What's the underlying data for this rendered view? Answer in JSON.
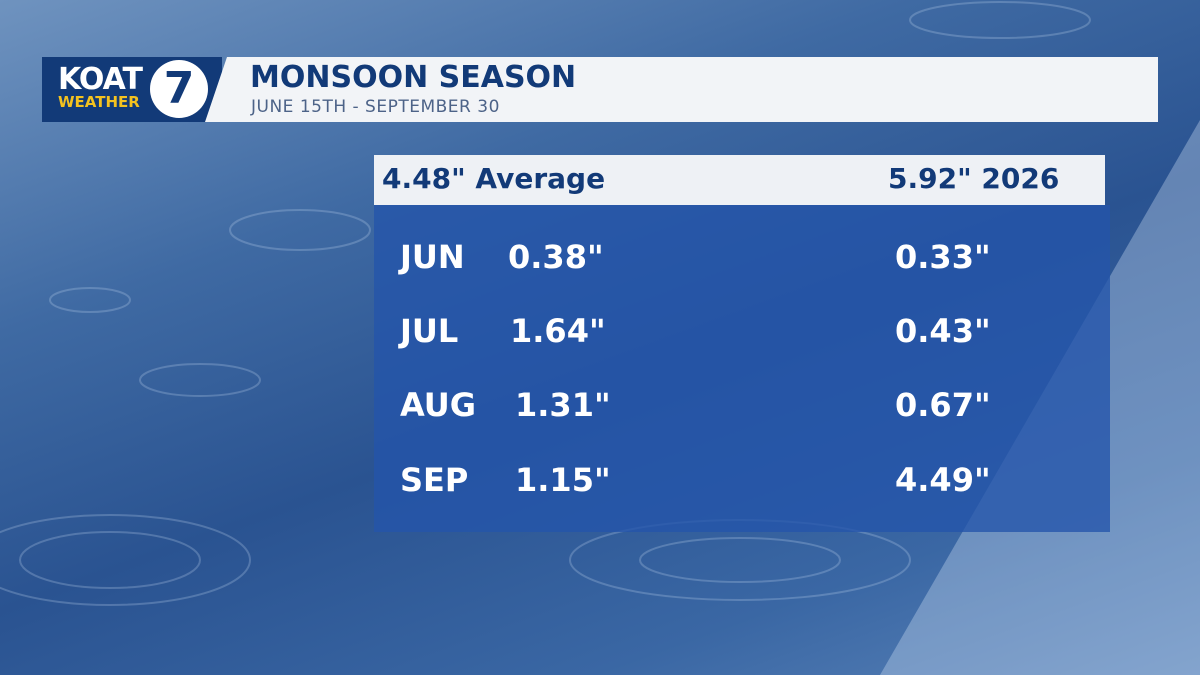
{
  "header": {
    "logo": {
      "name": "KOAT",
      "tag": "WEATHER",
      "channel": "7"
    },
    "title": "MONSOON SEASON",
    "subtitle": "JUNE 15TH - SEPTEMBER 30"
  },
  "table": {
    "header": [
      "4.48\" Average",
      "5.92\" 2026"
    ],
    "rows": [
      [
        "JUN",
        "0.38\"",
        "0.33\""
      ],
      [
        "JUL",
        "1.64\"",
        "0.43\""
      ],
      [
        "AUG",
        "1.31\"",
        "0.67\""
      ],
      [
        "SEP",
        "1.15\"",
        "4.49\""
      ]
    ]
  }
}
